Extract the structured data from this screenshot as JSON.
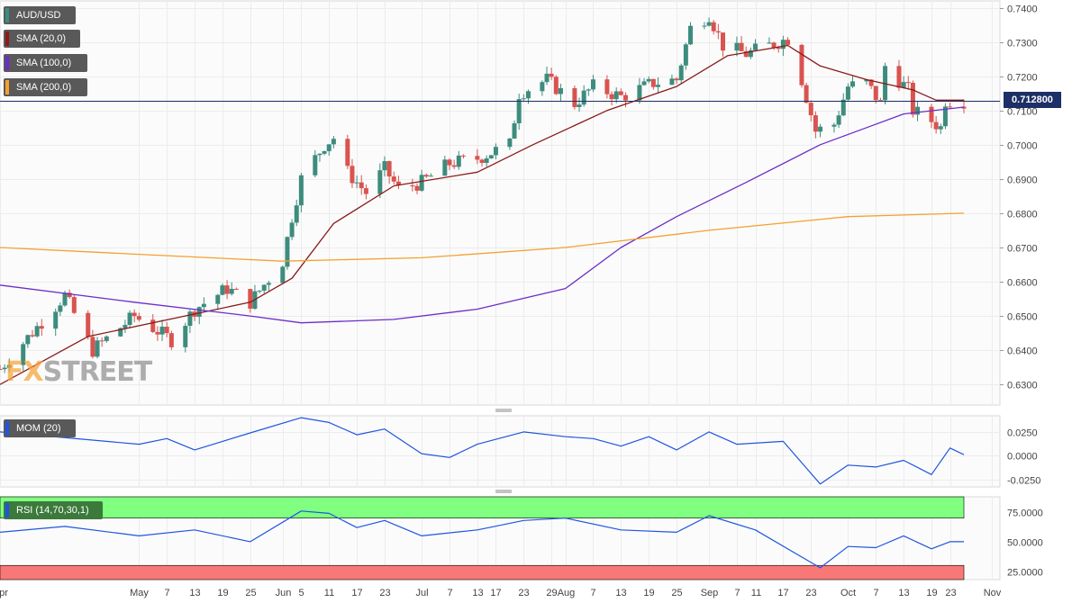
{
  "colors": {
    "bull": "#3d8c7d",
    "bear": "#d9534f",
    "sma20": "#8b1a1a",
    "sma100": "#6a2dc8",
    "sma200": "#f5a030",
    "mom": "#1f55e0",
    "rsi": "#1f55e0",
    "rsi_overbought": "#80ff80",
    "rsi_oversold": "#f87878",
    "price_line": "#1c2f66"
  },
  "legends": {
    "symbol": "AUD/USD",
    "sma20": "SMA (20,0)",
    "sma100": "SMA (100,0)",
    "sma200": "SMA (200,0)",
    "mom": "MOM (20)",
    "rsi": "RSI (14,70,30,1)"
  },
  "last_price_label": "0.712800",
  "watermark": {
    "fx": "FX",
    "street": "STREET"
  },
  "chart_data": [
    {
      "type": "candlestick",
      "title": "AUD/USD",
      "price_axis_ticks": [
        "0.7400",
        "0.7300",
        "0.7200",
        "0.7100",
        "0.7000",
        "0.6900",
        "0.6800",
        "0.6700",
        "0.6600",
        "0.6500",
        "0.6400",
        "0.6300"
      ],
      "ylim": [
        0.624,
        0.742
      ],
      "last_price": 0.7128,
      "x_labels": [
        "Apr",
        "May",
        "7",
        "13",
        "19",
        "25",
        "Jun",
        "5",
        "11",
        "17",
        "23",
        "Jul",
        "7",
        "13",
        "17",
        "23",
        "29",
        "Aug",
        "7",
        "13",
        "19",
        "25",
        "Sep",
        "7",
        "11",
        "17",
        "23",
        "Oct",
        "7",
        "13",
        "19",
        "23",
        "Nov"
      ],
      "anchors": [
        {
          "date": "Apr 1",
          "close": 0.6345
        },
        {
          "date": "Apr 15",
          "close": 0.656
        },
        {
          "date": "Apr 21",
          "close": 0.64
        },
        {
          "date": "Apr 30",
          "close": 0.65
        },
        {
          "date": "May 8",
          "close": 0.643
        },
        {
          "date": "May 13",
          "close": 0.652
        },
        {
          "date": "May 20",
          "close": 0.658
        },
        {
          "date": "May 25",
          "close": 0.654
        },
        {
          "date": "Jun 1",
          "close": 0.666
        },
        {
          "date": "Jun 3",
          "close": 0.679
        },
        {
          "date": "Jun 5",
          "close": 0.69
        },
        {
          "date": "Jun 10",
          "close": 0.7
        },
        {
          "date": "Jun 12",
          "close": 0.702
        },
        {
          "date": "Jun 15",
          "close": 0.692
        },
        {
          "date": "Jun 19",
          "close": 0.686
        },
        {
          "date": "Jun 23",
          "close": 0.693
        },
        {
          "date": "Jun 26",
          "close": 0.687
        },
        {
          "date": "Jul 1",
          "close": 0.689
        },
        {
          "date": "Jul 7",
          "close": 0.6945
        },
        {
          "date": "Jul 13",
          "close": 0.696
        },
        {
          "date": "Jul 20",
          "close": 0.7
        },
        {
          "date": "Jul 22",
          "close": 0.715
        },
        {
          "date": "Jul 28",
          "close": 0.719
        },
        {
          "date": "Aug 3",
          "close": 0.712
        },
        {
          "date": "Aug 7",
          "close": 0.717
        },
        {
          "date": "Aug 13",
          "close": 0.714
        },
        {
          "date": "Aug 20",
          "close": 0.718
        },
        {
          "date": "Aug 25",
          "close": 0.719
        },
        {
          "date": "Aug 28",
          "close": 0.734
        },
        {
          "date": "Sep 1",
          "close": 0.738
        },
        {
          "date": "Sep 4",
          "close": 0.729
        },
        {
          "date": "Sep 9",
          "close": 0.7265
        },
        {
          "date": "Sep 14",
          "close": 0.729
        },
        {
          "date": "Sep 18",
          "close": 0.731
        },
        {
          "date": "Sep 21",
          "close": 0.719
        },
        {
          "date": "Sep 24",
          "close": 0.704
        },
        {
          "date": "Sep 28",
          "close": 0.706
        },
        {
          "date": "Oct 1",
          "close": 0.717
        },
        {
          "date": "Oct 5",
          "close": 0.718
        },
        {
          "date": "Oct 8",
          "close": 0.712
        },
        {
          "date": "Oct 9",
          "close": 0.723
        },
        {
          "date": "Oct 14",
          "close": 0.716
        },
        {
          "date": "Oct 15",
          "close": 0.71
        },
        {
          "date": "Oct 19",
          "close": 0.707
        },
        {
          "date": "Oct 21",
          "close": 0.705
        },
        {
          "date": "Oct 22",
          "close": 0.713
        },
        {
          "date": "Oct 26",
          "close": 0.7128
        }
      ],
      "series": [
        {
          "name": "SMA (20,0)",
          "points": [
            [
              "Apr 1",
              0.63
            ],
            [
              "Apr 20",
              0.644
            ],
            [
              "May 25",
              0.654
            ],
            [
              "Jun 3",
              0.661
            ],
            [
              "Jun 12",
              0.677
            ],
            [
              "Jun 25",
              0.688
            ],
            [
              "Jul 13",
              0.692
            ],
            [
              "Jul 25",
              0.7
            ],
            [
              "Aug 10",
              0.71
            ],
            [
              "Aug 25",
              0.717
            ],
            [
              "Sep 5",
              0.726
            ],
            [
              "Sep 18",
              0.729
            ],
            [
              "Sep 25",
              0.723
            ],
            [
              "Oct 5",
              0.719
            ],
            [
              "Oct 15",
              0.716
            ],
            [
              "Oct 20",
              0.713
            ],
            [
              "Oct 26",
              0.713
            ]
          ]
        },
        {
          "name": "SMA (100,0)",
          "points": [
            [
              "Apr 1",
              0.659
            ],
            [
              "Apr 30",
              0.654
            ],
            [
              "May 25",
              0.65
            ],
            [
              "Jun 5",
              0.648
            ],
            [
              "Jun 25",
              0.649
            ],
            [
              "Jul 13",
              0.652
            ],
            [
              "Aug 1",
              0.658
            ],
            [
              "Aug 13",
              0.67
            ],
            [
              "Aug 25",
              0.679
            ],
            [
              "Sep 9",
              0.689
            ],
            [
              "Sep 25",
              0.7
            ],
            [
              "Oct 5",
              0.705
            ],
            [
              "Oct 13",
              0.709
            ],
            [
              "Oct 26",
              0.711
            ]
          ]
        },
        {
          "name": "SMA (200,0)",
          "points": [
            [
              "Apr 1",
              0.67
            ],
            [
              "May 1",
              0.668
            ],
            [
              "Jun 1",
              0.666
            ],
            [
              "Jul 1",
              0.667
            ],
            [
              "Aug 1",
              0.67
            ],
            [
              "Sep 1",
              0.675
            ],
            [
              "Oct 1",
              0.679
            ],
            [
              "Oct 26",
              0.68
            ]
          ]
        }
      ]
    },
    {
      "type": "line",
      "title": "MOM (20)",
      "ticks": [
        "0.0250",
        "0.0000",
        "-0.0250"
      ],
      "ylim": [
        -0.033,
        0.042
      ],
      "series": [
        {
          "name": "MOM (20)",
          "points": [
            [
              "Apr 1",
              0.025
            ],
            [
              "May 1",
              0.012
            ],
            [
              "May 7",
              0.018
            ],
            [
              "May 13",
              0.006
            ],
            [
              "May 25",
              0.024
            ],
            [
              "Jun 5",
              0.04
            ],
            [
              "Jun 11",
              0.035
            ],
            [
              "Jun 17",
              0.022
            ],
            [
              "Jun 23",
              0.028
            ],
            [
              "Jul 1",
              0.002
            ],
            [
              "Jul 7",
              -0.002
            ],
            [
              "Jul 13",
              0.012
            ],
            [
              "Jul 23",
              0.025
            ],
            [
              "Aug 1",
              0.02
            ],
            [
              "Aug 7",
              0.018
            ],
            [
              "Aug 13",
              0.01
            ],
            [
              "Aug 19",
              0.02
            ],
            [
              "Aug 25",
              0.006
            ],
            [
              "Sep 1",
              0.025
            ],
            [
              "Sep 7",
              0.012
            ],
            [
              "Sep 17",
              0.015
            ],
            [
              "Sep 25",
              -0.03
            ],
            [
              "Oct 1",
              -0.01
            ],
            [
              "Oct 7",
              -0.012
            ],
            [
              "Oct 13",
              -0.005
            ],
            [
              "Oct 19",
              -0.02
            ],
            [
              "Oct 23",
              0.008
            ],
            [
              "Oct 26",
              0.001
            ]
          ]
        }
      ]
    },
    {
      "type": "line",
      "title": "RSI (14,70,30,1)",
      "ticks": [
        "75.0000",
        "50.0000",
        "25.0000"
      ],
      "ylim": [
        18,
        88
      ],
      "overbought": 70,
      "oversold": 30,
      "series": [
        {
          "name": "RSI (14,70,30,1)",
          "points": [
            [
              "Apr 1",
              58
            ],
            [
              "Apr 15",
              63
            ],
            [
              "May 1",
              55
            ],
            [
              "May 13",
              60
            ],
            [
              "May 25",
              50
            ],
            [
              "Jun 5",
              76
            ],
            [
              "Jun 11",
              74
            ],
            [
              "Jun 17",
              62
            ],
            [
              "Jun 23",
              68
            ],
            [
              "Jul 1",
              55
            ],
            [
              "Jul 13",
              60
            ],
            [
              "Jul 23",
              68
            ],
            [
              "Aug 1",
              70
            ],
            [
              "Aug 13",
              60
            ],
            [
              "Aug 25",
              58
            ],
            [
              "Sep 1",
              72
            ],
            [
              "Sep 11",
              60
            ],
            [
              "Sep 25",
              28
            ],
            [
              "Oct 1",
              46
            ],
            [
              "Oct 7",
              45
            ],
            [
              "Oct 13",
              55
            ],
            [
              "Oct 19",
              44
            ],
            [
              "Oct 23",
              50
            ],
            [
              "Oct 26",
              50
            ]
          ]
        }
      ]
    }
  ]
}
